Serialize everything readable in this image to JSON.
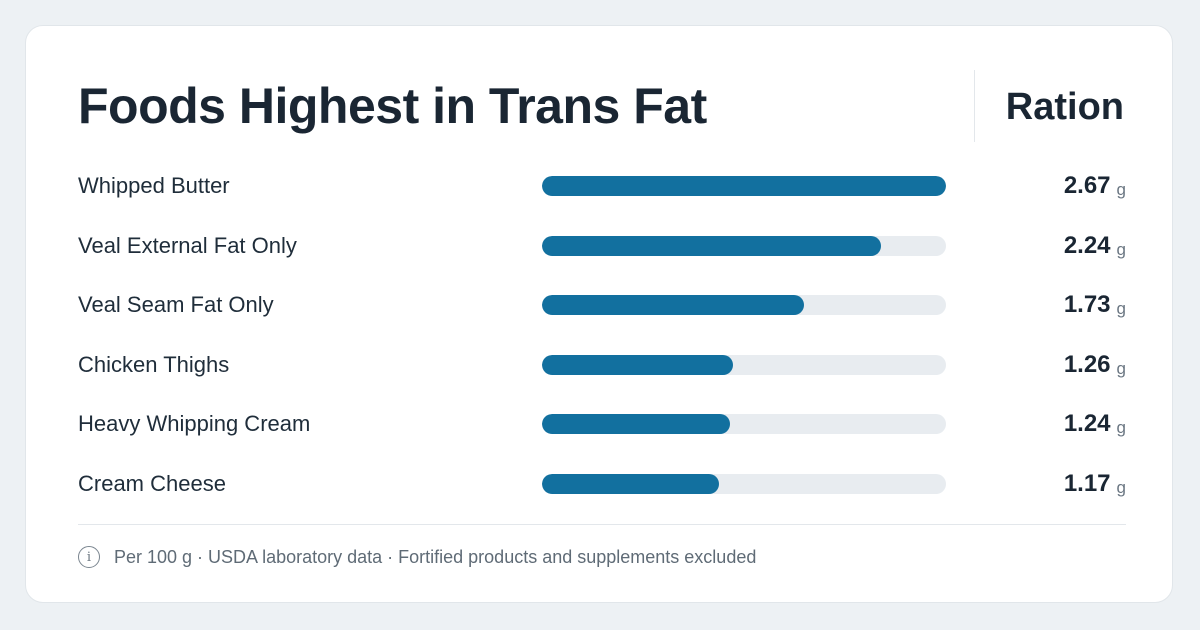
{
  "chart_data": {
    "type": "bar",
    "orientation": "horizontal",
    "title": "Foods Highest in Trans Fat",
    "column_header": "Ration",
    "categories": [
      "Whipped Butter",
      "Veal External Fat Only",
      "Veal Seam Fat Only",
      "Chicken Thighs",
      "Heavy Whipping Cream",
      "Cream Cheese"
    ],
    "values": [
      2.67,
      2.24,
      1.73,
      1.26,
      1.24,
      1.17
    ],
    "value_labels": [
      "2.67",
      "2.24",
      "1.73",
      "1.26",
      "1.24",
      "1.17"
    ],
    "unit": "g",
    "xlim": [
      0,
      2.67
    ],
    "bar_color": "#12709f",
    "track_color": "#e8ecf0",
    "grid": false
  },
  "footer": {
    "icon": "info-icon",
    "note": "Per 100 g · USDA laboratory data · Fortified products and supplements excluded"
  }
}
